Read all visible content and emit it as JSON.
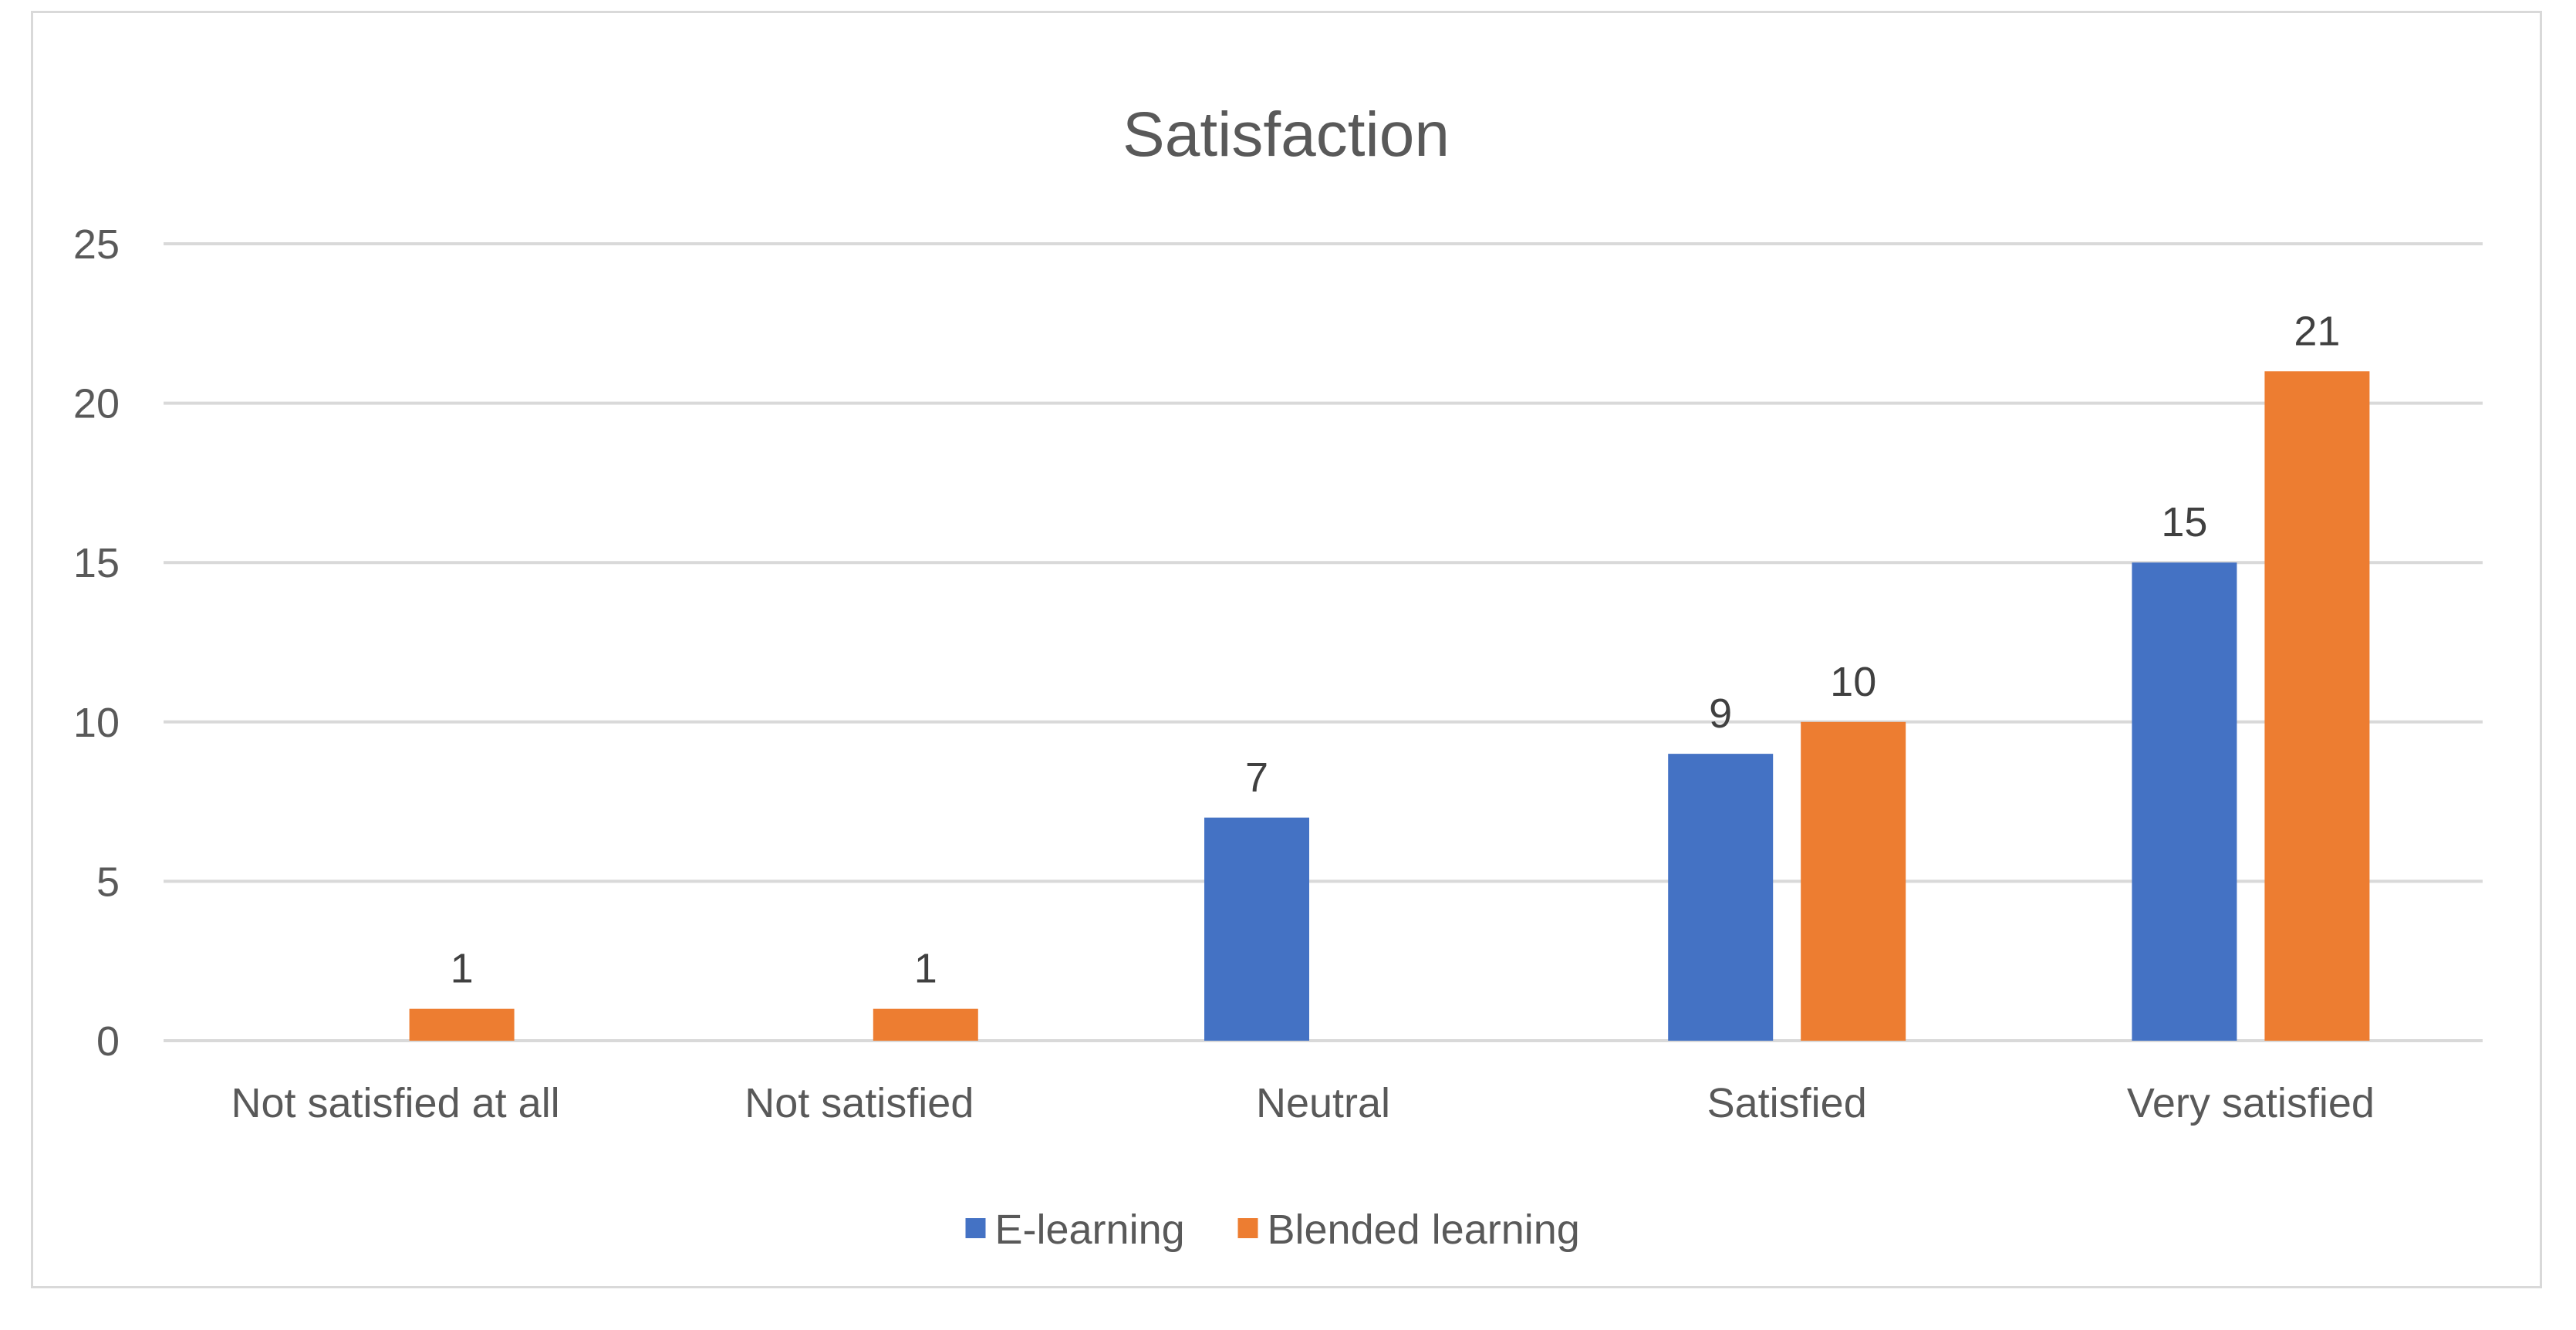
{
  "chart_data": {
    "type": "bar",
    "title": "Satisfaction",
    "xlabel": "",
    "ylabel": "",
    "categories": [
      "Not satisfied at all",
      "Not satisfied",
      "Neutral",
      "Satisfied",
      "Very satisfied"
    ],
    "series": [
      {
        "name": "E-learning",
        "color": "#4472c4",
        "values": [
          null,
          null,
          7,
          9,
          15
        ]
      },
      {
        "name": "Blended learning",
        "color": "#ed7d31",
        "values": [
          1,
          1,
          null,
          10,
          21
        ]
      }
    ],
    "ylim": [
      0,
      25
    ],
    "yticks": [
      0,
      5,
      10,
      15,
      20,
      25
    ],
    "grid": true,
    "legend": "bottom",
    "data_labels": true,
    "gridline_color": "#d9d9d9"
  }
}
